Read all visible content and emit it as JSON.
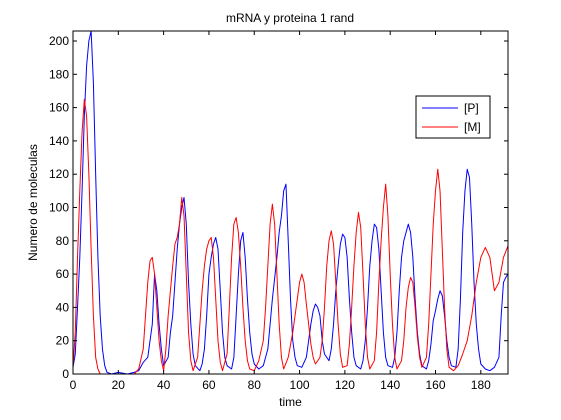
{
  "chart_data": {
    "type": "line",
    "title": "mRNA y proteina 1 rand",
    "xlabel": "time",
    "ylabel": "Numero de moleculas",
    "xlim": [
      0,
      192
    ],
    "ylim": [
      0,
      206
    ],
    "xticks": [
      0,
      20,
      40,
      60,
      80,
      100,
      120,
      140,
      160,
      180
    ],
    "yticks": [
      0,
      20,
      40,
      60,
      80,
      100,
      120,
      140,
      160,
      180,
      200
    ],
    "grid": false,
    "legend_position": "top-right",
    "series": [
      {
        "name": "[P]",
        "color": "#0000ff",
        "points": [
          [
            0,
            4
          ],
          [
            1,
            12
          ],
          [
            2,
            40
          ],
          [
            3,
            70
          ],
          [
            4,
            110
          ],
          [
            5,
            155
          ],
          [
            6,
            185
          ],
          [
            7,
            200
          ],
          [
            8,
            206
          ],
          [
            9,
            175
          ],
          [
            10,
            120
          ],
          [
            11,
            70
          ],
          [
            12,
            35
          ],
          [
            13,
            15
          ],
          [
            14,
            5
          ],
          [
            15,
            1
          ],
          [
            17,
            0
          ],
          [
            20,
            1
          ],
          [
            24,
            0
          ],
          [
            27,
            1
          ],
          [
            29,
            2
          ],
          [
            31,
            7
          ],
          [
            33,
            10
          ],
          [
            35,
            30
          ],
          [
            36,
            60
          ],
          [
            37,
            50
          ],
          [
            38,
            30
          ],
          [
            39,
            15
          ],
          [
            40,
            5
          ],
          [
            42,
            10
          ],
          [
            43,
            25
          ],
          [
            44,
            35
          ],
          [
            45,
            55
          ],
          [
            46,
            75
          ],
          [
            47,
            90
          ],
          [
            48,
            100
          ],
          [
            49,
            106
          ],
          [
            50,
            90
          ],
          [
            51,
            55
          ],
          [
            52,
            30
          ],
          [
            53,
            12
          ],
          [
            54,
            5
          ],
          [
            56,
            2
          ],
          [
            57,
            6
          ],
          [
            58,
            15
          ],
          [
            59,
            35
          ],
          [
            60,
            60
          ],
          [
            61,
            70
          ],
          [
            62,
            78
          ],
          [
            63,
            82
          ],
          [
            64,
            75
          ],
          [
            65,
            50
          ],
          [
            66,
            25
          ],
          [
            67,
            10
          ],
          [
            68,
            5
          ],
          [
            70,
            3
          ],
          [
            71,
            10
          ],
          [
            72,
            35
          ],
          [
            73,
            60
          ],
          [
            74,
            80
          ],
          [
            75,
            85
          ],
          [
            76,
            70
          ],
          [
            77,
            45
          ],
          [
            78,
            25
          ],
          [
            79,
            12
          ],
          [
            80,
            6
          ],
          [
            82,
            3
          ],
          [
            84,
            5
          ],
          [
            86,
            15
          ],
          [
            88,
            45
          ],
          [
            90,
            70
          ],
          [
            91,
            85
          ],
          [
            92,
            95
          ],
          [
            93,
            110
          ],
          [
            94,
            114
          ],
          [
            95,
            80
          ],
          [
            96,
            45
          ],
          [
            97,
            20
          ],
          [
            98,
            10
          ],
          [
            99,
            5
          ],
          [
            101,
            4
          ],
          [
            103,
            10
          ],
          [
            104,
            20
          ],
          [
            105,
            30
          ],
          [
            106,
            38
          ],
          [
            107,
            42
          ],
          [
            108,
            40
          ],
          [
            109,
            35
          ],
          [
            110,
            20
          ],
          [
            111,
            12
          ],
          [
            112,
            10
          ],
          [
            113,
            8
          ],
          [
            114,
            15
          ],
          [
            115,
            30
          ],
          [
            116,
            50
          ],
          [
            117,
            65
          ],
          [
            118,
            78
          ],
          [
            119,
            84
          ],
          [
            120,
            82
          ],
          [
            121,
            70
          ],
          [
            122,
            45
          ],
          [
            123,
            25
          ],
          [
            124,
            10
          ],
          [
            125,
            5
          ],
          [
            127,
            3
          ],
          [
            128,
            8
          ],
          [
            129,
            20
          ],
          [
            130,
            40
          ],
          [
            131,
            65
          ],
          [
            132,
            80
          ],
          [
            133,
            90
          ],
          [
            134,
            88
          ],
          [
            135,
            75
          ],
          [
            136,
            50
          ],
          [
            137,
            25
          ],
          [
            138,
            10
          ],
          [
            139,
            5
          ],
          [
            141,
            4
          ],
          [
            142,
            10
          ],
          [
            143,
            25
          ],
          [
            144,
            50
          ],
          [
            145,
            70
          ],
          [
            146,
            80
          ],
          [
            147,
            85
          ],
          [
            148,
            90
          ],
          [
            149,
            85
          ],
          [
            150,
            70
          ],
          [
            151,
            45
          ],
          [
            152,
            25
          ],
          [
            153,
            12
          ],
          [
            154,
            5
          ],
          [
            156,
            3
          ],
          [
            157,
            8
          ],
          [
            158,
            18
          ],
          [
            159,
            32
          ],
          [
            160,
            38
          ],
          [
            161,
            45
          ],
          [
            162,
            50
          ],
          [
            163,
            47
          ],
          [
            164,
            35
          ],
          [
            165,
            20
          ],
          [
            166,
            10
          ],
          [
            167,
            5
          ],
          [
            169,
            4
          ],
          [
            170,
            15
          ],
          [
            171,
            45
          ],
          [
            172,
            85
          ],
          [
            173,
            110
          ],
          [
            174,
            123
          ],
          [
            175,
            118
          ],
          [
            176,
            90
          ],
          [
            177,
            55
          ],
          [
            178,
            30
          ],
          [
            179,
            15
          ],
          [
            180,
            6
          ],
          [
            182,
            3
          ],
          [
            184,
            2
          ],
          [
            186,
            4
          ],
          [
            188,
            10
          ],
          [
            189,
            35
          ],
          [
            190,
            55
          ],
          [
            191,
            58
          ],
          [
            192,
            60
          ]
        ]
      },
      {
        "name": "[M]",
        "color": "#ff0000",
        "points": [
          [
            0,
            4
          ],
          [
            1,
            25
          ],
          [
            2,
            70
          ],
          [
            3,
            110
          ],
          [
            4,
            145
          ],
          [
            5,
            165
          ],
          [
            6,
            155
          ],
          [
            7,
            120
          ],
          [
            8,
            75
          ],
          [
            9,
            35
          ],
          [
            10,
            10
          ],
          [
            11,
            3
          ],
          [
            12,
            0
          ],
          [
            27,
            0
          ],
          [
            29,
            3
          ],
          [
            31,
            15
          ],
          [
            32,
            35
          ],
          [
            33,
            55
          ],
          [
            34,
            68
          ],
          [
            35,
            70
          ],
          [
            36,
            60
          ],
          [
            37,
            40
          ],
          [
            38,
            20
          ],
          [
            39,
            8
          ],
          [
            40,
            2
          ],
          [
            41,
            15
          ],
          [
            42,
            35
          ],
          [
            43,
            50
          ],
          [
            44,
            65
          ],
          [
            45,
            78
          ],
          [
            46,
            82
          ],
          [
            47,
            90
          ],
          [
            48,
            106
          ],
          [
            49,
            95
          ],
          [
            50,
            60
          ],
          [
            51,
            25
          ],
          [
            52,
            8
          ],
          [
            53,
            2
          ],
          [
            55,
            10
          ],
          [
            56,
            30
          ],
          [
            57,
            50
          ],
          [
            58,
            65
          ],
          [
            59,
            75
          ],
          [
            60,
            80
          ],
          [
            61,
            82
          ],
          [
            62,
            70
          ],
          [
            63,
            45
          ],
          [
            64,
            20
          ],
          [
            65,
            7
          ],
          [
            66,
            2
          ],
          [
            68,
            12
          ],
          [
            69,
            40
          ],
          [
            70,
            70
          ],
          [
            71,
            90
          ],
          [
            72,
            94
          ],
          [
            73,
            85
          ],
          [
            74,
            65
          ],
          [
            75,
            40
          ],
          [
            76,
            20
          ],
          [
            77,
            8
          ],
          [
            78,
            3
          ],
          [
            80,
            2
          ],
          [
            82,
            8
          ],
          [
            84,
            20
          ],
          [
            85,
            40
          ],
          [
            86,
            65
          ],
          [
            87,
            90
          ],
          [
            88,
            102
          ],
          [
            89,
            90
          ],
          [
            90,
            60
          ],
          [
            91,
            30
          ],
          [
            92,
            10
          ],
          [
            93,
            3
          ],
          [
            95,
            10
          ],
          [
            97,
            25
          ],
          [
            99,
            45
          ],
          [
            100,
            55
          ],
          [
            101,
            60
          ],
          [
            102,
            55
          ],
          [
            103,
            42
          ],
          [
            104,
            30
          ],
          [
            105,
            18
          ],
          [
            106,
            10
          ],
          [
            107,
            6
          ],
          [
            109,
            10
          ],
          [
            110,
            20
          ],
          [
            111,
            40
          ],
          [
            112,
            65
          ],
          [
            113,
            80
          ],
          [
            114,
            86
          ],
          [
            115,
            78
          ],
          [
            116,
            55
          ],
          [
            117,
            30
          ],
          [
            118,
            12
          ],
          [
            119,
            4
          ],
          [
            121,
            5
          ],
          [
            122,
            18
          ],
          [
            123,
            40
          ],
          [
            124,
            65
          ],
          [
            125,
            85
          ],
          [
            126,
            97
          ],
          [
            127,
            88
          ],
          [
            128,
            60
          ],
          [
            129,
            30
          ],
          [
            130,
            10
          ],
          [
            131,
            3
          ],
          [
            133,
            8
          ],
          [
            134,
            25
          ],
          [
            135,
            55
          ],
          [
            136,
            80
          ],
          [
            137,
            100
          ],
          [
            138,
            114
          ],
          [
            139,
            95
          ],
          [
            140,
            60
          ],
          [
            141,
            30
          ],
          [
            142,
            10
          ],
          [
            143,
            3
          ],
          [
            145,
            8
          ],
          [
            146,
            20
          ],
          [
            147,
            40
          ],
          [
            148,
            52
          ],
          [
            149,
            58
          ],
          [
            150,
            55
          ],
          [
            151,
            40
          ],
          [
            152,
            22
          ],
          [
            153,
            10
          ],
          [
            154,
            4
          ],
          [
            156,
            10
          ],
          [
            157,
            30
          ],
          [
            158,
            60
          ],
          [
            159,
            90
          ],
          [
            160,
            110
          ],
          [
            161,
            123
          ],
          [
            162,
            110
          ],
          [
            163,
            75
          ],
          [
            164,
            40
          ],
          [
            165,
            15
          ],
          [
            166,
            4
          ],
          [
            168,
            2
          ],
          [
            170,
            5
          ],
          [
            172,
            12
          ],
          [
            174,
            20
          ],
          [
            176,
            35
          ],
          [
            178,
            55
          ],
          [
            180,
            70
          ],
          [
            182,
            76
          ],
          [
            184,
            70
          ],
          [
            186,
            50
          ],
          [
            188,
            55
          ],
          [
            190,
            70
          ],
          [
            192,
            77
          ]
        ]
      }
    ]
  }
}
